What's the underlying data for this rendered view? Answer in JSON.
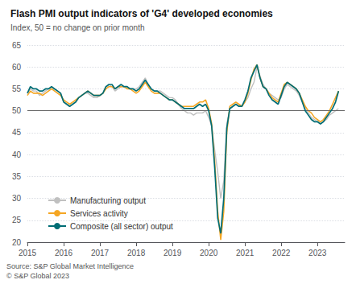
{
  "chart_data": {
    "type": "line",
    "title": "Flash PMI output indicators of 'G4' developed economies",
    "subtitle": "Index, 50 = no change on prior month",
    "source": "Source: S&P Global Market Intelligence\n© S&P Global 2023",
    "x": [
      2015,
      2015.0833,
      2015.1666,
      2015.2499,
      2015.3332,
      2015.4165,
      2015.4998,
      2015.5831,
      2015.6664,
      2015.7497,
      2015.833,
      2015.9163,
      2015.9996,
      2016.0829,
      2016.1662,
      2016.2495,
      2016.3328,
      2016.4161,
      2016.4994,
      2016.5827,
      2016.666,
      2016.7493,
      2016.8326,
      2016.9159,
      2016.9992,
      2017.0825,
      2017.1658,
      2017.2491,
      2017.3324,
      2017.4157,
      2017.499,
      2017.5823,
      2017.6656,
      2017.7489,
      2017.8322,
      2017.9155,
      2017.9988,
      2018.0821,
      2018.1654,
      2018.2487,
      2018.332,
      2018.4153,
      2018.4986,
      2018.5819,
      2018.6652,
      2018.7485,
      2018.8318,
      2018.9151,
      2018.9984,
      2019.0817,
      2019.165,
      2019.2483,
      2019.3317,
      2019.415,
      2019.4983,
      2019.5816,
      2019.6649,
      2019.7482,
      2019.8315,
      2019.9148,
      2019.9981,
      2020.0814,
      2020.1647,
      2020.248,
      2020.3313,
      2020.4146,
      2020.4979,
      2020.5812,
      2020.6645,
      2020.7478,
      2020.8311,
      2020.9144,
      2020.9977,
      2021.081,
      2021.1643,
      2021.2476,
      2021.3309,
      2021.4142,
      2021.4975,
      2021.5808,
      2021.6641,
      2021.7474,
      2021.8307,
      2021.914,
      2021.9973,
      2022.0806,
      2022.1639,
      2022.2472,
      2022.3305,
      2022.4138,
      2022.4971,
      2022.5804,
      2022.6637,
      2022.747,
      2022.8303,
      2022.9136,
      2022.9969,
      2023.0802,
      2023.1635,
      2023.2468,
      2023.3301,
      2023.4134,
      2023.4967,
      2023.58
    ],
    "xlim": [
      2015,
      2023.75
    ],
    "xticks": [
      2015,
      2016,
      2017,
      2018,
      2019,
      2020,
      2021,
      2022,
      2023
    ],
    "ylim": [
      20,
      65
    ],
    "yticks": [
      20,
      25,
      30,
      35,
      40,
      45,
      50,
      55,
      60,
      65
    ],
    "grid": true,
    "legend": "lower left",
    "hlines": [
      {
        "value": 50,
        "color": "#666666"
      }
    ],
    "series": [
      {
        "name": "Manufacturing output",
        "color": "#c0c0c0",
        "values": [
          54.0,
          55.0,
          54.5,
          54.5,
          53.5,
          54.0,
          54.5,
          55.0,
          55.5,
          55.0,
          54.5,
          54.0,
          52.0,
          51.5,
          51.0,
          51.5,
          52.0,
          53.0,
          53.5,
          54.0,
          54.0,
          53.5,
          53.0,
          53.0,
          53.5,
          54.0,
          55.5,
          56.0,
          55.5,
          54.5,
          55.0,
          55.5,
          55.5,
          55.5,
          55.0,
          55.0,
          55.0,
          55.5,
          56.5,
          57.5,
          56.0,
          55.0,
          54.5,
          54.5,
          54.5,
          54.0,
          53.5,
          53.0,
          53.0,
          52.5,
          51.5,
          50.5,
          50.0,
          49.5,
          49.5,
          49.0,
          49.5,
          49.5,
          49.5,
          50.0,
          48.5,
          46.5,
          41.0,
          36.0,
          30.0,
          34.0,
          47.0,
          50.5,
          51.0,
          51.5,
          51.0,
          51.0,
          52.0,
          53.0,
          55.0,
          56.5,
          60.0,
          58.0,
          56.0,
          55.0,
          54.0,
          53.5,
          53.0,
          52.5,
          53.0,
          55.0,
          56.0,
          55.5,
          55.0,
          54.5,
          53.5,
          52.0,
          50.5,
          49.5,
          48.5,
          48.0,
          47.5,
          47.0,
          47.5,
          48.0,
          49.0,
          49.5,
          50.0,
          50.5
        ]
      },
      {
        "name": "Services activity",
        "color": "#f5a623",
        "values": [
          53.5,
          54.5,
          54.0,
          54.0,
          54.0,
          53.5,
          54.0,
          54.5,
          55.0,
          54.5,
          54.0,
          53.5,
          52.5,
          52.0,
          51.5,
          52.0,
          52.5,
          53.0,
          53.5,
          54.0,
          54.5,
          54.0,
          53.5,
          53.5,
          53.5,
          54.0,
          55.0,
          55.5,
          55.5,
          55.0,
          55.5,
          55.5,
          55.5,
          55.0,
          55.0,
          54.5,
          54.0,
          54.5,
          55.5,
          56.5,
          55.5,
          54.5,
          54.0,
          54.0,
          54.0,
          53.5,
          53.0,
          52.5,
          52.5,
          52.0,
          51.5,
          51.0,
          51.0,
          51.0,
          51.0,
          51.0,
          51.5,
          52.0,
          52.0,
          52.5,
          50.5,
          47.0,
          38.5,
          27.0,
          20.5,
          27.0,
          45.0,
          51.0,
          51.5,
          52.0,
          51.5,
          51.0,
          52.0,
          54.0,
          57.0,
          59.5,
          60.5,
          57.5,
          55.5,
          55.0,
          54.0,
          53.0,
          52.5,
          52.0,
          54.0,
          56.0,
          56.5,
          56.0,
          55.5,
          55.0,
          54.0,
          52.5,
          51.0,
          50.0,
          49.5,
          48.5,
          48.0,
          47.5,
          48.0,
          49.0,
          50.0,
          51.5,
          53.0,
          54.5
        ]
      },
      {
        "name": "Composite (all sector) output",
        "color": "#006d75",
        "values": [
          54.0,
          55.5,
          55.0,
          55.0,
          54.5,
          54.5,
          55.0,
          55.0,
          55.5,
          55.0,
          54.5,
          54.0,
          52.0,
          51.5,
          51.0,
          51.5,
          52.0,
          53.0,
          53.5,
          54.0,
          54.5,
          54.0,
          53.5,
          53.5,
          53.5,
          54.0,
          55.5,
          56.0,
          56.0,
          55.0,
          55.5,
          56.0,
          55.5,
          55.5,
          55.0,
          55.0,
          54.5,
          55.0,
          56.0,
          57.0,
          56.0,
          55.0,
          54.5,
          54.5,
          54.0,
          53.5,
          53.0,
          52.5,
          52.5,
          52.0,
          51.5,
          51.0,
          50.5,
          50.5,
          50.5,
          50.5,
          51.0,
          51.5,
          51.0,
          51.5,
          50.0,
          46.5,
          37.0,
          25.5,
          22.0,
          30.0,
          46.0,
          50.5,
          51.0,
          51.5,
          51.0,
          51.0,
          52.5,
          54.5,
          57.5,
          59.0,
          60.5,
          57.5,
          55.5,
          55.0,
          53.5,
          52.5,
          52.0,
          51.5,
          53.5,
          55.5,
          56.5,
          56.0,
          55.5,
          55.0,
          54.0,
          52.0,
          50.0,
          49.0,
          48.0,
          47.5,
          47.5,
          47.0,
          47.5,
          48.5,
          49.5,
          50.5,
          52.0,
          54.5
        ]
      }
    ]
  }
}
